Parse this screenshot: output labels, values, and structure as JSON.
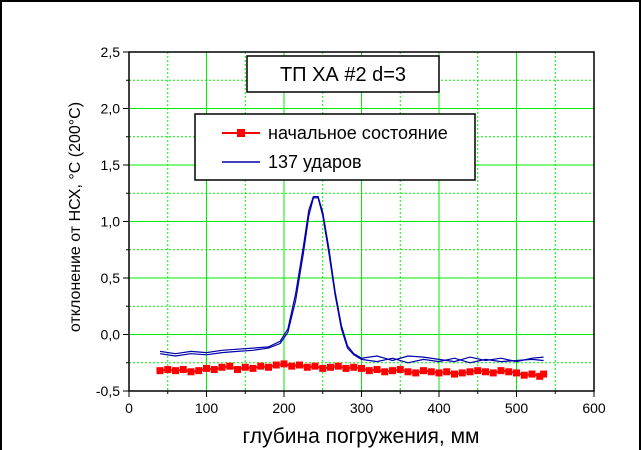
{
  "chart_data": {
    "type": "line",
    "title": "ТП ХА #2 d=3",
    "xlabel": "глубина погружения, мм",
    "ylabel": "отклонение от НСХ, °С (200°С)",
    "xlim": [
      0,
      600
    ],
    "ylim": [
      -0.5,
      2.5
    ],
    "x_ticks": [
      "0",
      "100",
      "200",
      "300",
      "400",
      "500",
      "600"
    ],
    "y_ticks": [
      "-0,5",
      "0,0",
      "0,5",
      "1,0",
      "1,5",
      "2,0",
      "2,5"
    ],
    "grid": true,
    "legend_position": "upper-center",
    "series": [
      {
        "name": "начальное состояние",
        "color": "#ff0000",
        "marker": "square",
        "points": [
          [
            40,
            -0.32
          ],
          [
            50,
            -0.31
          ],
          [
            60,
            -0.32
          ],
          [
            70,
            -0.31
          ],
          [
            80,
            -0.33
          ],
          [
            90,
            -0.32
          ],
          [
            100,
            -0.3
          ],
          [
            110,
            -0.31
          ],
          [
            120,
            -0.29
          ],
          [
            130,
            -0.28
          ],
          [
            140,
            -0.31
          ],
          [
            150,
            -0.29
          ],
          [
            160,
            -0.3
          ],
          [
            170,
            -0.28
          ],
          [
            180,
            -0.29
          ],
          [
            190,
            -0.27
          ],
          [
            200,
            -0.26
          ],
          [
            210,
            -0.28
          ],
          [
            220,
            -0.27
          ],
          [
            230,
            -0.29
          ],
          [
            240,
            -0.28
          ],
          [
            250,
            -0.3
          ],
          [
            260,
            -0.29
          ],
          [
            270,
            -0.28
          ],
          [
            280,
            -0.3
          ],
          [
            290,
            -0.29
          ],
          [
            300,
            -0.3
          ],
          [
            310,
            -0.32
          ],
          [
            320,
            -0.31
          ],
          [
            330,
            -0.33
          ],
          [
            340,
            -0.32
          ],
          [
            350,
            -0.31
          ],
          [
            360,
            -0.33
          ],
          [
            370,
            -0.34
          ],
          [
            380,
            -0.32
          ],
          [
            390,
            -0.33
          ],
          [
            400,
            -0.34
          ],
          [
            410,
            -0.33
          ],
          [
            420,
            -0.35
          ],
          [
            430,
            -0.34
          ],
          [
            440,
            -0.33
          ],
          [
            450,
            -0.32
          ],
          [
            460,
            -0.33
          ],
          [
            470,
            -0.34
          ],
          [
            480,
            -0.32
          ],
          [
            490,
            -0.33
          ],
          [
            500,
            -0.34
          ],
          [
            510,
            -0.36
          ],
          [
            520,
            -0.35
          ],
          [
            530,
            -0.37
          ],
          [
            535,
            -0.35
          ]
        ]
      },
      {
        "name": "137 ударов",
        "color": "#0000aa",
        "marker": "none",
        "points": [
          [
            40,
            -0.17
          ],
          [
            60,
            -0.19
          ],
          [
            80,
            -0.17
          ],
          [
            100,
            -0.18
          ],
          [
            120,
            -0.16
          ],
          [
            140,
            -0.15
          ],
          [
            160,
            -0.14
          ],
          [
            180,
            -0.12
          ],
          [
            195,
            -0.08
          ],
          [
            205,
            0.02
          ],
          [
            215,
            0.3
          ],
          [
            225,
            0.72
          ],
          [
            232,
            1.05
          ],
          [
            238,
            1.21
          ],
          [
            244,
            1.21
          ],
          [
            250,
            1.05
          ],
          [
            258,
            0.72
          ],
          [
            266,
            0.35
          ],
          [
            274,
            0.05
          ],
          [
            282,
            -0.12
          ],
          [
            290,
            -0.18
          ],
          [
            300,
            -0.22
          ],
          [
            320,
            -0.24
          ],
          [
            340,
            -0.21
          ],
          [
            360,
            -0.25
          ],
          [
            380,
            -0.22
          ],
          [
            400,
            -0.24
          ],
          [
            420,
            -0.21
          ],
          [
            440,
            -0.25
          ],
          [
            460,
            -0.22
          ],
          [
            480,
            -0.24
          ],
          [
            500,
            -0.23
          ],
          [
            520,
            -0.22
          ],
          [
            535,
            -0.23
          ]
        ],
        "points2": [
          [
            40,
            -0.15
          ],
          [
            60,
            -0.17
          ],
          [
            80,
            -0.15
          ],
          [
            100,
            -0.16
          ],
          [
            120,
            -0.14
          ],
          [
            140,
            -0.13
          ],
          [
            160,
            -0.12
          ],
          [
            180,
            -0.11
          ],
          [
            195,
            -0.06
          ],
          [
            205,
            0.05
          ],
          [
            215,
            0.36
          ],
          [
            225,
            0.78
          ],
          [
            232,
            1.1
          ],
          [
            238,
            1.22
          ],
          [
            244,
            1.22
          ],
          [
            250,
            1.08
          ],
          [
            258,
            0.76
          ],
          [
            266,
            0.38
          ],
          [
            274,
            0.08
          ],
          [
            282,
            -0.1
          ],
          [
            290,
            -0.17
          ],
          [
            300,
            -0.21
          ],
          [
            320,
            -0.19
          ],
          [
            340,
            -0.23
          ],
          [
            360,
            -0.19
          ],
          [
            380,
            -0.2
          ],
          [
            400,
            -0.22
          ],
          [
            420,
            -0.24
          ],
          [
            440,
            -0.2
          ],
          [
            460,
            -0.23
          ],
          [
            480,
            -0.21
          ],
          [
            500,
            -0.24
          ],
          [
            520,
            -0.21
          ],
          [
            535,
            -0.2
          ]
        ]
      }
    ]
  }
}
